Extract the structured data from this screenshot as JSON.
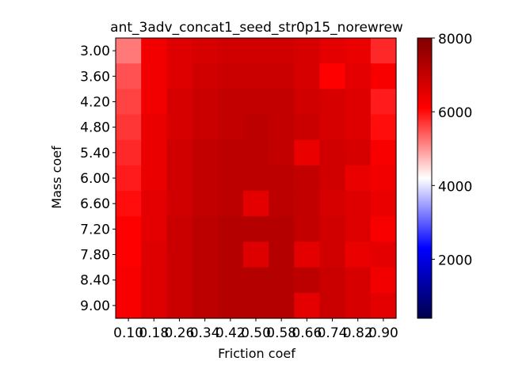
{
  "chart_data": {
    "type": "heatmap",
    "title": "ant_3adv_concat1_seed_str0p15_norewrew",
    "xlabel": "Friction coef",
    "ylabel": "Mass coef",
    "x_tick_labels": [
      "0.10",
      "0.18",
      "0.26",
      "0.34",
      "0.42",
      "0.50",
      "0.58",
      "0.66",
      "0.74",
      "0.82",
      "0.90"
    ],
    "y_tick_labels": [
      "3.00",
      "3.60",
      "4.20",
      "4.80",
      "5.40",
      "6.00",
      "6.60",
      "7.20",
      "7.80",
      "8.40",
      "9.00"
    ],
    "values": [
      [
        5200,
        6300,
        6600,
        6700,
        6800,
        6800,
        6800,
        6700,
        6500,
        6400,
        5800
      ],
      [
        5500,
        6300,
        6600,
        6800,
        6900,
        6900,
        6900,
        6700,
        6100,
        6500,
        6200
      ],
      [
        5600,
        6300,
        6700,
        6900,
        7000,
        7000,
        7000,
        6800,
        6700,
        6600,
        5900
      ],
      [
        5700,
        6400,
        6700,
        6900,
        7000,
        7100,
        7000,
        6900,
        6700,
        6600,
        6000
      ],
      [
        5800,
        6400,
        6800,
        7000,
        7100,
        7100,
        7000,
        6400,
        6800,
        6700,
        6200
      ],
      [
        5900,
        6400,
        6800,
        7000,
        7100,
        7100,
        7100,
        7000,
        6800,
        6400,
        6300
      ],
      [
        6000,
        6500,
        6800,
        7000,
        7100,
        6500,
        7100,
        7000,
        6700,
        6600,
        6400
      ],
      [
        6100,
        6500,
        6900,
        7100,
        7200,
        7200,
        7200,
        7000,
        6800,
        6600,
        6200
      ],
      [
        6100,
        6600,
        6900,
        7100,
        7200,
        6600,
        7200,
        6500,
        6800,
        6400,
        6500
      ],
      [
        6200,
        6600,
        6900,
        7100,
        7200,
        7200,
        7200,
        7100,
        6900,
        6700,
        6300
      ],
      [
        6200,
        6600,
        6900,
        7100,
        7200,
        7200,
        7200,
        6500,
        6900,
        6700,
        6500
      ]
    ],
    "colorbar": {
      "min": 400,
      "max": 8000,
      "center": 4200,
      "colormap": "seismic",
      "tick_values": [
        2000,
        4000,
        6000,
        8000
      ],
      "tick_labels": [
        "2000",
        "4000",
        "6000",
        "8000"
      ]
    }
  }
}
